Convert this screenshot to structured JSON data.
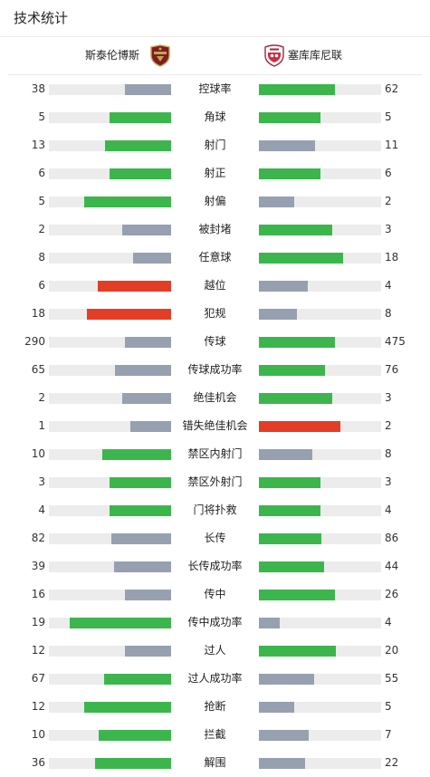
{
  "title": "技术统计",
  "colors": {
    "win": "#3cb64c",
    "lose": "#97a0b0",
    "alert": "#e33d26",
    "track": "#ececec"
  },
  "teams": {
    "home": {
      "name": "斯泰伦博斯",
      "badge_icon": "stellenbosch-badge"
    },
    "away": {
      "name": "塞库库尼联",
      "badge_icon": "sekhukhune-badge"
    }
  },
  "stats": [
    {
      "label": "控球率",
      "home": "38",
      "away": "62",
      "home_fill": 0.38,
      "away_fill": 0.62,
      "home_color": "lose",
      "away_color": "win"
    },
    {
      "label": "角球",
      "home": "5",
      "away": "5",
      "home_fill": 0.5,
      "away_fill": 0.5,
      "home_color": "win",
      "away_color": "win"
    },
    {
      "label": "射门",
      "home": "13",
      "away": "11",
      "home_fill": 0.54,
      "away_fill": 0.46,
      "home_color": "win",
      "away_color": "lose"
    },
    {
      "label": "射正",
      "home": "6",
      "away": "6",
      "home_fill": 0.5,
      "away_fill": 0.5,
      "home_color": "win",
      "away_color": "win"
    },
    {
      "label": "射偏",
      "home": "5",
      "away": "2",
      "home_fill": 0.71,
      "away_fill": 0.29,
      "home_color": "win",
      "away_color": "lose"
    },
    {
      "label": "被封堵",
      "home": "2",
      "away": "3",
      "home_fill": 0.4,
      "away_fill": 0.6,
      "home_color": "lose",
      "away_color": "win"
    },
    {
      "label": "任意球",
      "home": "8",
      "away": "18",
      "home_fill": 0.31,
      "away_fill": 0.69,
      "home_color": "lose",
      "away_color": "win"
    },
    {
      "label": "越位",
      "home": "6",
      "away": "4",
      "home_fill": 0.6,
      "away_fill": 0.4,
      "home_color": "alert",
      "away_color": "lose"
    },
    {
      "label": "犯规",
      "home": "18",
      "away": "8",
      "home_fill": 0.69,
      "away_fill": 0.31,
      "home_color": "alert",
      "away_color": "lose"
    },
    {
      "label": "传球",
      "home": "290",
      "away": "475",
      "home_fill": 0.38,
      "away_fill": 0.62,
      "home_color": "lose",
      "away_color": "win"
    },
    {
      "label": "传球成功率",
      "home": "65",
      "away": "76",
      "home_fill": 0.46,
      "away_fill": 0.54,
      "home_color": "lose",
      "away_color": "win"
    },
    {
      "label": "绝佳机会",
      "home": "2",
      "away": "3",
      "home_fill": 0.4,
      "away_fill": 0.6,
      "home_color": "lose",
      "away_color": "win"
    },
    {
      "label": "错失绝佳机会",
      "home": "1",
      "away": "2",
      "home_fill": 0.33,
      "away_fill": 0.67,
      "home_color": "lose",
      "away_color": "alert"
    },
    {
      "label": "禁区内射门",
      "home": "10",
      "away": "8",
      "home_fill": 0.56,
      "away_fill": 0.44,
      "home_color": "win",
      "away_color": "lose"
    },
    {
      "label": "禁区外射门",
      "home": "3",
      "away": "3",
      "home_fill": 0.5,
      "away_fill": 0.5,
      "home_color": "win",
      "away_color": "win"
    },
    {
      "label": "门将扑救",
      "home": "4",
      "away": "4",
      "home_fill": 0.5,
      "away_fill": 0.5,
      "home_color": "win",
      "away_color": "win"
    },
    {
      "label": "长传",
      "home": "82",
      "away": "86",
      "home_fill": 0.49,
      "away_fill": 0.51,
      "home_color": "lose",
      "away_color": "win"
    },
    {
      "label": "长传成功率",
      "home": "39",
      "away": "44",
      "home_fill": 0.47,
      "away_fill": 0.53,
      "home_color": "lose",
      "away_color": "win"
    },
    {
      "label": "传中",
      "home": "16",
      "away": "26",
      "home_fill": 0.38,
      "away_fill": 0.62,
      "home_color": "lose",
      "away_color": "win"
    },
    {
      "label": "传中成功率",
      "home": "19",
      "away": "4",
      "home_fill": 0.83,
      "away_fill": 0.17,
      "home_color": "win",
      "away_color": "lose"
    },
    {
      "label": "过人",
      "home": "12",
      "away": "20",
      "home_fill": 0.38,
      "away_fill": 0.63,
      "home_color": "lose",
      "away_color": "win"
    },
    {
      "label": "过人成功率",
      "home": "67",
      "away": "55",
      "home_fill": 0.55,
      "away_fill": 0.45,
      "home_color": "win",
      "away_color": "lose"
    },
    {
      "label": "抢断",
      "home": "12",
      "away": "5",
      "home_fill": 0.71,
      "away_fill": 0.29,
      "home_color": "win",
      "away_color": "lose"
    },
    {
      "label": "拦截",
      "home": "10",
      "away": "7",
      "home_fill": 0.59,
      "away_fill": 0.41,
      "home_color": "win",
      "away_color": "lose"
    },
    {
      "label": "解围",
      "home": "36",
      "away": "22",
      "home_fill": 0.62,
      "away_fill": 0.38,
      "home_color": "win",
      "away_color": "lose"
    }
  ]
}
